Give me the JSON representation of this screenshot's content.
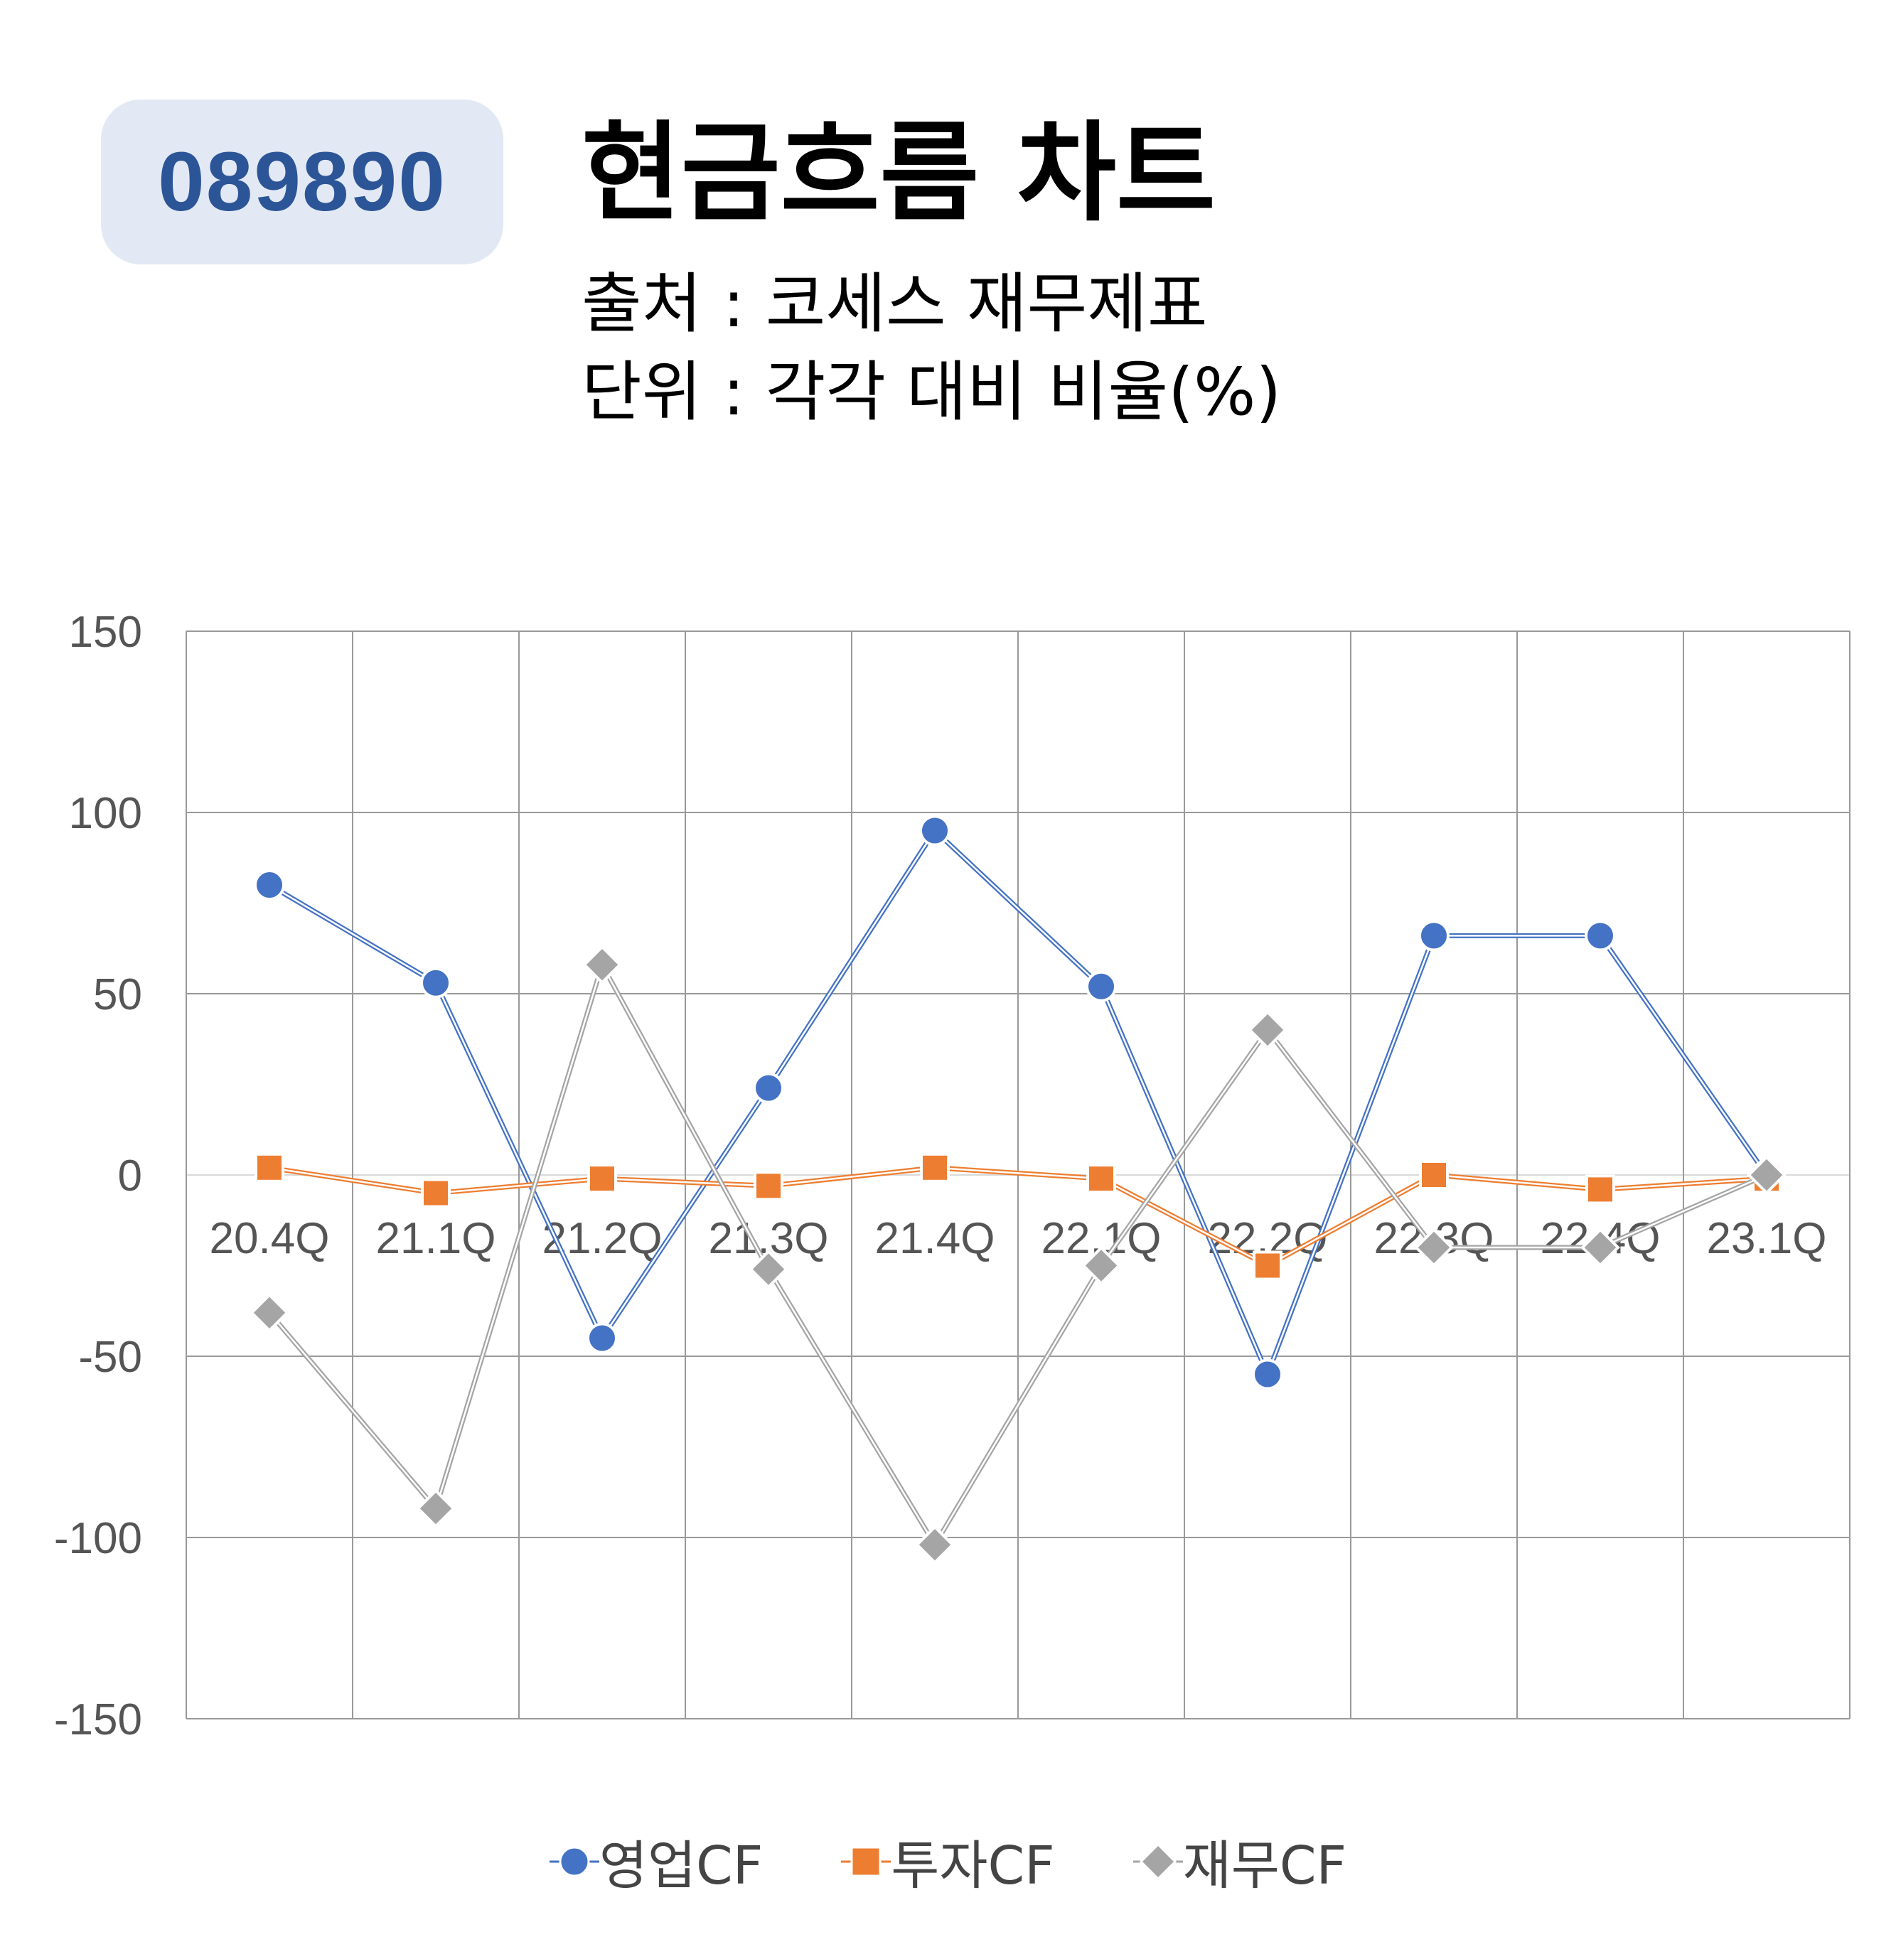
{
  "header": {
    "ticker": "089890",
    "title": "현금흐름 차트",
    "source": "출처 : 코세스 재무제표",
    "unit": "단위 : 각각 대비 비율(%)"
  },
  "colors": {
    "operating": "#4472c4",
    "investing": "#ed7d31",
    "financing": "#a5a5a5",
    "grid": "#999999",
    "zero_line": "#d9d9d9"
  },
  "chart_data": {
    "type": "line",
    "categories": [
      "20.4Q",
      "21.1Q",
      "21.2Q",
      "21.3Q",
      "21.4Q",
      "22.1Q",
      "22.2Q",
      "22.3Q",
      "22.4Q",
      "23.1Q"
    ],
    "ylim": [
      -150,
      150
    ],
    "yticks": [
      150,
      100,
      50,
      0,
      -50,
      -100,
      -150
    ],
    "grid": true,
    "legend_position": "bottom",
    "series": [
      {
        "name": "영업CF",
        "marker": "circle",
        "color": "#4472c4",
        "values": [
          80,
          53,
          -45,
          24,
          95,
          52,
          -55,
          66,
          66,
          0
        ]
      },
      {
        "name": "투자CF",
        "marker": "square",
        "color": "#ed7d31",
        "values": [
          2,
          -5,
          -1,
          -3,
          2,
          -1,
          -25,
          0,
          -4,
          -1
        ]
      },
      {
        "name": "재무CF",
        "marker": "diamond",
        "color": "#a5a5a5",
        "values": [
          -38,
          -92,
          58,
          -26,
          -102,
          -25,
          40,
          -20,
          -20,
          0
        ]
      }
    ]
  }
}
